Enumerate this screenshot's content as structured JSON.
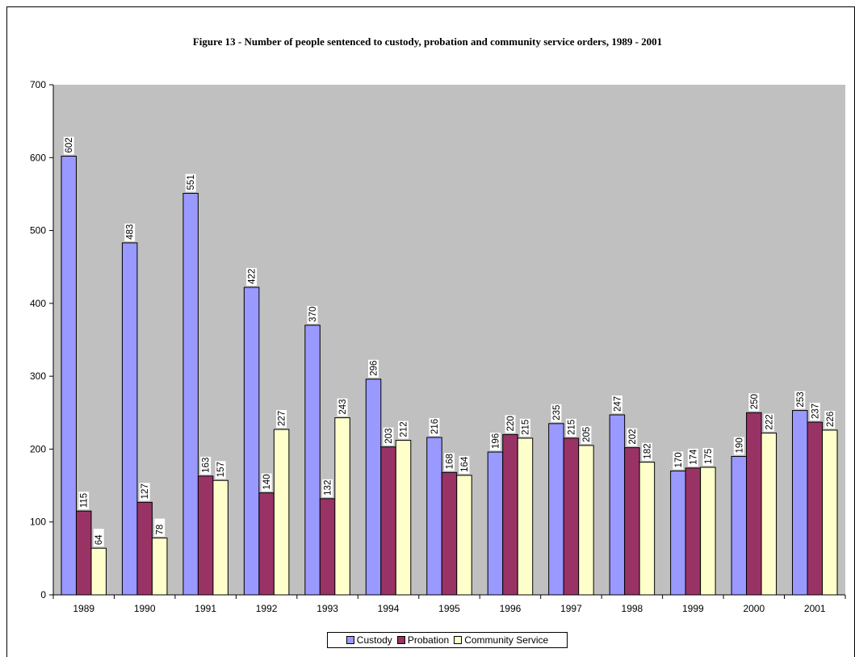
{
  "chart_data": {
    "type": "bar",
    "title": "Figure 13 - Number of people sentenced to custody, probation and community service orders, 1989 - 2001",
    "xlabel": "",
    "ylabel": "",
    "ylim": [
      0,
      700
    ],
    "yticks": [
      0,
      100,
      200,
      300,
      400,
      500,
      600,
      700
    ],
    "grid": false,
    "legend_position": "bottom",
    "categories": [
      "1989",
      "1990",
      "1991",
      "1992",
      "1993",
      "1994",
      "1995",
      "1996",
      "1997",
      "1998",
      "1999",
      "2000",
      "2001"
    ],
    "series": [
      {
        "name": "Custody",
        "color": "#9999ff",
        "values": [
          602,
          483,
          551,
          422,
          370,
          296,
          216,
          196,
          235,
          247,
          170,
          190,
          253
        ]
      },
      {
        "name": "Probation",
        "color": "#993366",
        "values": [
          115,
          127,
          163,
          140,
          132,
          203,
          168,
          220,
          215,
          202,
          174,
          250,
          237
        ]
      },
      {
        "name": "Community Service",
        "color": "#ffffcc",
        "values": [
          64,
          78,
          157,
          227,
          243,
          212,
          164,
          215,
          205,
          182,
          175,
          222,
          226
        ]
      }
    ],
    "plot_background": "#c0c0c0"
  }
}
